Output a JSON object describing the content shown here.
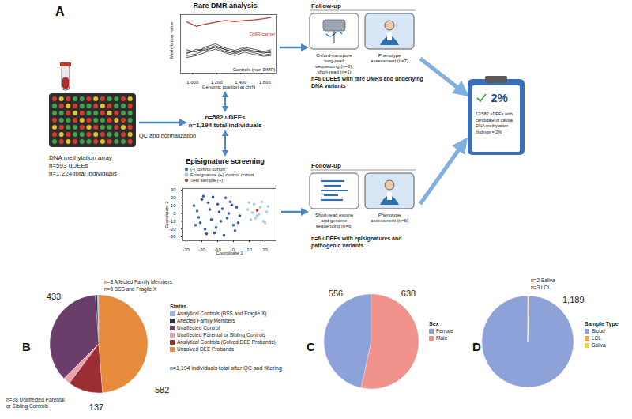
{
  "diagram": {
    "panel": "A",
    "input": {
      "lines": [
        "DNA methylation array",
        "n=593 uDEEs",
        "n=1,224 total individuals"
      ]
    },
    "qc_step": "QC and normalization",
    "cohort": {
      "lines": [
        "n=582 uDEEs",
        "n=1,194 total individuals"
      ]
    },
    "follow_up_top": {
      "header": "Follow-up",
      "boxes": [
        "Oxford-nanopore long-read sequencing (n=8); short-read (n=1)",
        "Phenotype assessment (n=7)"
      ],
      "result": "n=6 uDEEs with rare DMRs and underlying DNA variants"
    },
    "follow_up_bottom": {
      "header": "Follow-up",
      "boxes": [
        "Short-read exome and genome sequencing (n=6)",
        "Phenotype assessment (n=6)"
      ],
      "result": "n=6 uDEEs with episignatures and pathogenic variants"
    },
    "summary": {
      "big": "2%",
      "text": "12/582 uDEEs with candidate or causal DNA methylation findings = 2%"
    }
  },
  "chart_data": [
    {
      "type": "line",
      "title": "Rare DMR analysis",
      "xlabel": "Genomic position at chrN",
      "ylabel": "Methylation value",
      "x": [
        950,
        1030,
        1110,
        1190,
        1270,
        1350,
        1430,
        1510,
        1590,
        1650
      ],
      "xlim": [
        900,
        1700
      ],
      "xticks": [
        {
          "value": 1000,
          "label": "1,000"
        },
        {
          "value": 1200,
          "label": "1,200"
        },
        {
          "value": 1400,
          "label": "1,400"
        },
        {
          "value": 1600,
          "label": "1,600"
        }
      ],
      "ylim": [
        0,
        1
      ],
      "tick_labels": "x",
      "series": [
        {
          "name": "DMR-carrier",
          "color": "#c0392b",
          "values": [
            0.88,
            0.8,
            0.84,
            0.87,
            0.9,
            0.88,
            0.9,
            0.91,
            0.93,
            0.95
          ]
        },
        {
          "name": "Controls (non-DMR)",
          "color": "#111111",
          "values": [
            0.35,
            0.38,
            0.42,
            0.47,
            0.4,
            0.36,
            0.42,
            0.38,
            0.34,
            0.37
          ]
        },
        {
          "name": "Controls (non-DMR)",
          "color": "#111111",
          "values": [
            0.3,
            0.33,
            0.4,
            0.44,
            0.37,
            0.33,
            0.39,
            0.35,
            0.31,
            0.33
          ]
        },
        {
          "name": "Controls (non-DMR)",
          "color": "#111111",
          "values": [
            0.4,
            0.36,
            0.45,
            0.5,
            0.43,
            0.39,
            0.44,
            0.41,
            0.37,
            0.4
          ]
        },
        {
          "name": "Controls (non-DMR)",
          "color": "#111111",
          "values": [
            0.27,
            0.3,
            0.36,
            0.41,
            0.35,
            0.3,
            0.36,
            0.32,
            0.29,
            0.3
          ]
        },
        {
          "name": "Controls (non-DMR)",
          "color": "#111111",
          "values": [
            0.33,
            0.41,
            0.38,
            0.45,
            0.41,
            0.35,
            0.4,
            0.37,
            0.36,
            0.35
          ]
        }
      ]
    },
    {
      "type": "scatter",
      "title": "Episignature screening",
      "xlabel": "Coordinate 1",
      "ylabel": "Coordinate 2",
      "xlim": [
        -32,
        27
      ],
      "xticks": [
        -30,
        -20,
        -10,
        0,
        10,
        20
      ],
      "ylim": [
        -35,
        32
      ],
      "yticks": [
        -30,
        -20,
        -10,
        0,
        10,
        20,
        30
      ],
      "series": [
        {
          "name": "(-) control cohort",
          "color": "#3b5fa5",
          "x": [
            -25,
            -22,
            -20,
            -18,
            -15,
            -12,
            -10,
            -8,
            -5,
            -3,
            0,
            2,
            -24,
            -19,
            -14,
            -9,
            -6,
            -2,
            1,
            4,
            -21,
            -16,
            -11,
            -7,
            -4,
            -1,
            3,
            -23,
            -13,
            -17
          ],
          "values": [
            10,
            -5,
            18,
            -20,
            5,
            -25,
            12,
            -10,
            20,
            0,
            -15,
            8,
            -15,
            22,
            -8,
            2,
            -28,
            15,
            -22,
            -3,
            -12,
            14,
            -18,
            6,
            -6,
            11,
            -12,
            3,
            21,
            -26
          ]
        },
        {
          "name": "Episignature (+) control cohort",
          "color": "#a9cde9",
          "x": [
            9,
            11,
            13,
            15,
            17,
            19,
            21,
            10,
            14,
            18,
            20,
            12,
            16,
            22
          ],
          "values": [
            5,
            -8,
            12,
            -3,
            8,
            -10,
            2,
            14,
            -6,
            15,
            -12,
            1,
            -1,
            9
          ]
        },
        {
          "name": "Test sample (+)",
          "color": "#c0392b",
          "x": [
            15
          ],
          "values": [
            4
          ]
        }
      ]
    },
    {
      "type": "pie",
      "panel": "B",
      "categories": [
        "Analytical Controls (BSS and Fragile X)",
        "Affected Family Members",
        "Unaffected Control",
        "Unaffected Parental or Sibling Controls",
        "Analytical Controls (Solved DEE Probands)",
        "Unsolved DEE Probands"
      ],
      "values": [
        6,
        8,
        433,
        28,
        137,
        582
      ],
      "value_labels": [
        "n=6 BSS and Fragile X",
        "n=8 Affected Family Members",
        "433",
        "n=28 Unaffected Parental or Sibling Controls",
        "137",
        "582"
      ],
      "colors": [
        "#9db4e0",
        "#2c2c54",
        "#6a3d6a",
        "#eaa3ad",
        "#9c2f33",
        "#e58b3b"
      ],
      "data_labels": true,
      "legend": "right",
      "legend_title": "Status",
      "annotations": [
        "n=1,194 individuals total after QC and filtering"
      ]
    },
    {
      "type": "pie",
      "panel": "C",
      "categories": [
        "Female",
        "Male"
      ],
      "values": [
        556,
        638
      ],
      "colors": [
        "#8ea2da",
        "#ef928c"
      ],
      "data_labels": true,
      "legend": "right",
      "legend_title": "Sex"
    },
    {
      "type": "pie",
      "panel": "D",
      "categories": [
        "Blood",
        "LCL",
        "Saliva"
      ],
      "values": [
        1189,
        3,
        2
      ],
      "value_labels": [
        "1,189",
        "n=3 LCL",
        "n=2 Saliva"
      ],
      "colors": [
        "#8ea2da",
        "#f2a547",
        "#f1d24a"
      ],
      "data_labels": true,
      "legend": "right",
      "legend_title": "Sample Type"
    }
  ]
}
